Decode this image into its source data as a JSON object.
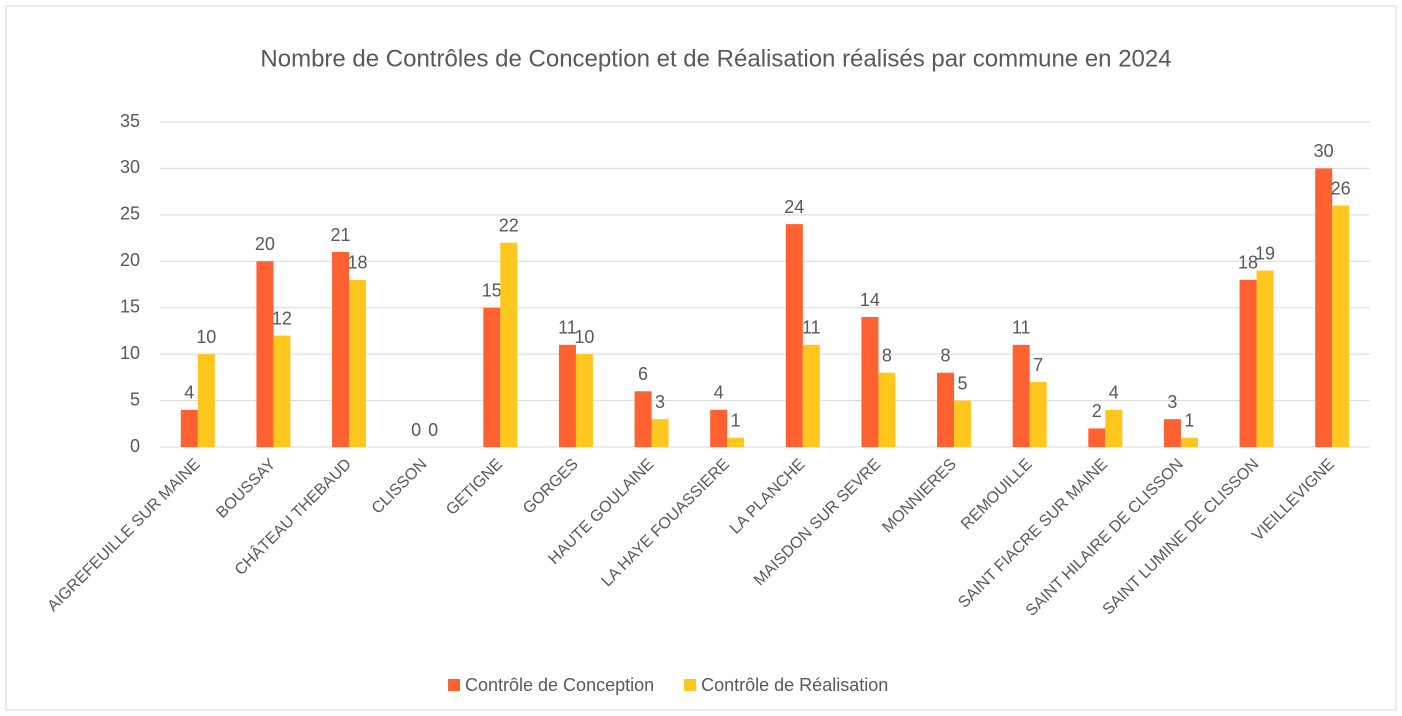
{
  "chart_data": {
    "type": "bar",
    "title": "Nombre de Contrôles de Conception et de Réalisation réalisés par commune en 2024",
    "categories": [
      "AIGREFEUILLE SUR MAINE",
      "BOUSSAY",
      "CHÂTEAU THEBAUD",
      "CLISSON",
      "GETIGNE",
      "GORGES",
      "HAUTE GOULAINE",
      "LA HAYE FOUASSIERE",
      "LA PLANCHE",
      "MAISDON SUR SEVRE",
      "MONNIERES",
      "REMOUILLE",
      "SAINT FIACRE SUR MAINE",
      "SAINT HILAIRE DE CLISSON",
      "SAINT LUMINE DE CLISSON",
      "VIEILLEVIGNE"
    ],
    "series": [
      {
        "name": "Contrôle de Conception",
        "color": "#FF6130",
        "values": [
          4,
          20,
          21,
          0,
          15,
          11,
          6,
          4,
          24,
          14,
          8,
          11,
          2,
          3,
          18,
          30
        ]
      },
      {
        "name": "Contrôle de Réalisation",
        "color": "#FFC61E",
        "values": [
          10,
          12,
          18,
          0,
          22,
          10,
          3,
          1,
          11,
          8,
          5,
          7,
          4,
          1,
          19,
          26
        ]
      }
    ],
    "ylim": [
      0,
      35
    ],
    "yticks": [
      0,
      5,
      10,
      15,
      20,
      25,
      30,
      35
    ],
    "grid": true,
    "legend": "bottom"
  }
}
